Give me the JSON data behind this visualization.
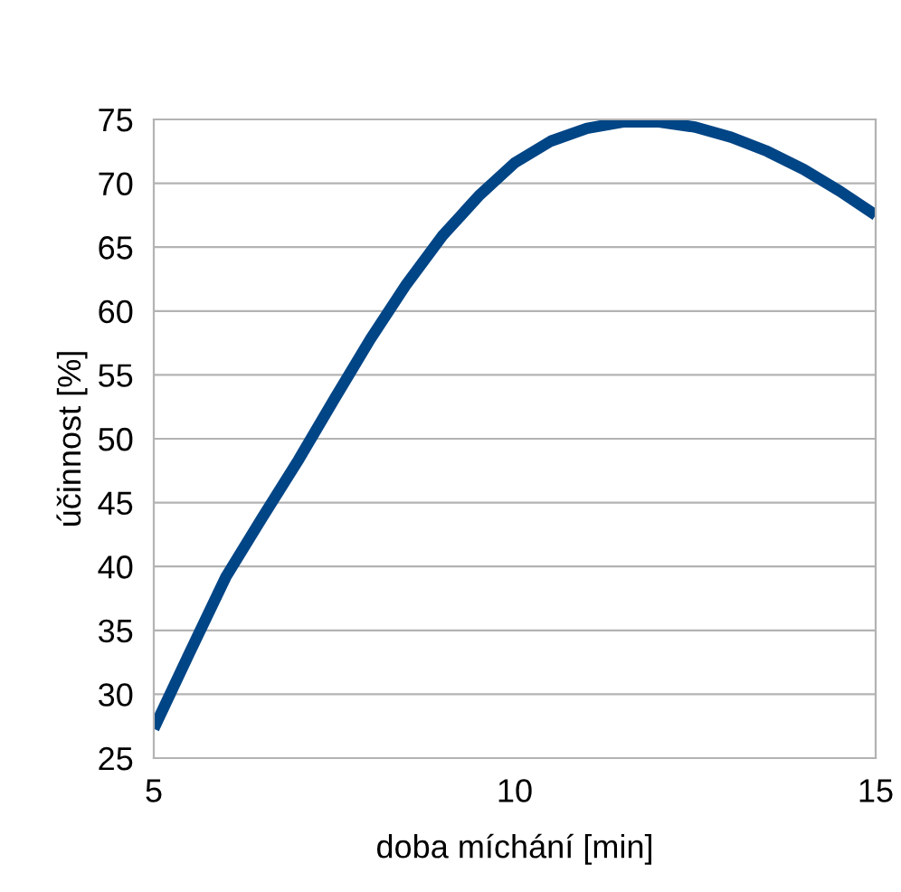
{
  "chart_data": {
    "type": "line",
    "xlabel": "doba míchání [min]",
    "ylabel": "účinnost [%]",
    "x": [
      5,
      5.5,
      6,
      6.5,
      7,
      7.5,
      8,
      8.5,
      9,
      9.5,
      10,
      10.5,
      11,
      11.5,
      12,
      12.5,
      13,
      13.5,
      14,
      14.5,
      15
    ],
    "series": [
      {
        "color": "#004586",
        "values": [
          27.3,
          33.3,
          39.2,
          43.8,
          48.3,
          53.1,
          57.8,
          62.1,
          65.9,
          69.0,
          71.6,
          73.3,
          74.3,
          74.8,
          74.8,
          74.4,
          73.6,
          72.5,
          71.1,
          69.4,
          67.5
        ]
      }
    ],
    "xlim": [
      5,
      15
    ],
    "xticks": [
      5,
      10,
      15
    ],
    "ylim": [
      25,
      75
    ],
    "yticks": [
      25,
      30,
      35,
      40,
      45,
      50,
      55,
      60,
      65,
      70,
      75
    ],
    "grid": "y",
    "marker": "none",
    "line_style": "solid",
    "legend": false
  }
}
